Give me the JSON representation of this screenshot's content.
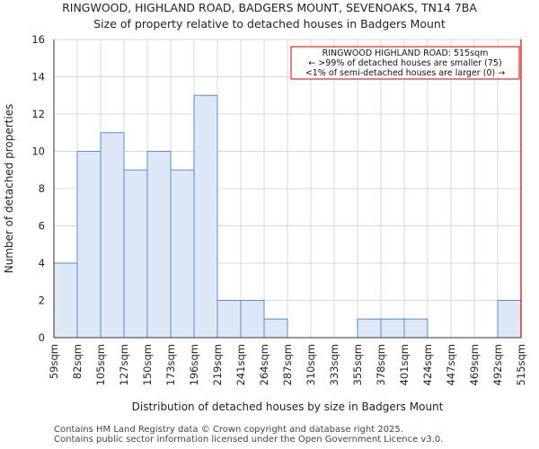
{
  "chart_data": {
    "type": "bar",
    "title": "RINGWOOD, HIGHLAND ROAD, BADGERS MOUNT, SEVENOAKS, TN14 7BA",
    "subtitle": "Size of property relative to detached houses in Badgers Mount",
    "xlabel": "Distribution of detached houses by size in Badgers Mount",
    "ylabel": "Number of detached properties",
    "bin_edges": [
      "59sqm",
      "82sqm",
      "105sqm",
      "127sqm",
      "150sqm",
      "173sqm",
      "196sqm",
      "219sqm",
      "241sqm",
      "264sqm",
      "287sqm",
      "310sqm",
      "333sqm",
      "355sqm",
      "378sqm",
      "401sqm",
      "424sqm",
      "447sqm",
      "469sqm",
      "492sqm",
      "515sqm"
    ],
    "values": [
      4,
      10,
      11,
      9,
      10,
      9,
      13,
      2,
      2,
      1,
      0,
      0,
      0,
      1,
      1,
      1,
      0,
      0,
      0,
      2
    ],
    "ylim": [
      0,
      16
    ],
    "yticks": [
      0,
      2,
      4,
      6,
      8,
      10,
      12,
      14,
      16
    ],
    "grid": true,
    "bar_color": "#dde7f5",
    "bar_edge_color": "#5b8bd0",
    "marker": {
      "value": "515sqm",
      "color": "#cc0000",
      "lines": [
        "RINGWOOD HIGHLAND ROAD: 515sqm",
        "← >99% of detached houses are smaller (75)",
        "<1% of semi-detached houses are larger (0) →"
      ]
    }
  },
  "footer": {
    "line1": "Contains HM Land Registry data © Crown copyright and database right 2025.",
    "line2": "Contains public sector information licensed under the Open Government Licence v3.0."
  }
}
